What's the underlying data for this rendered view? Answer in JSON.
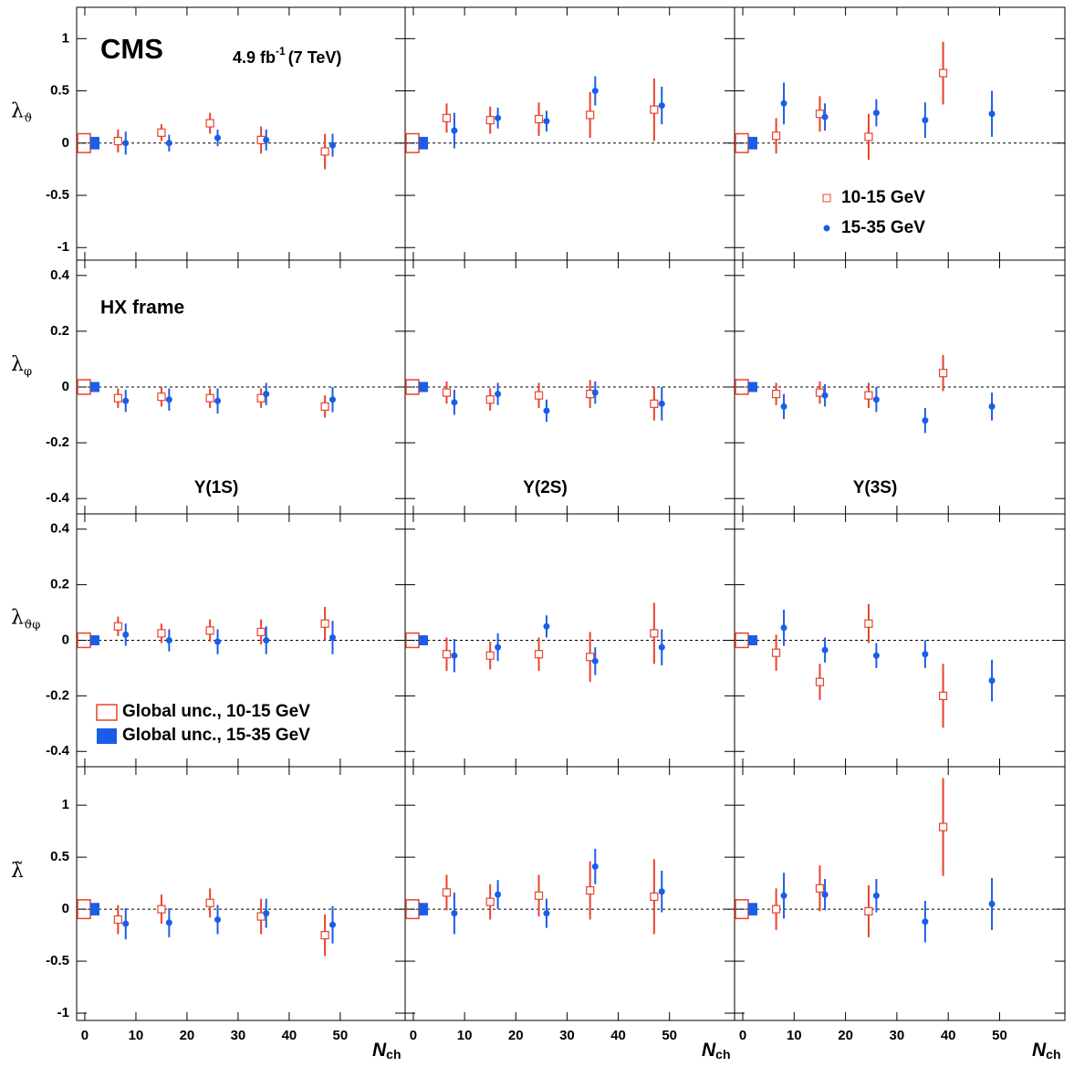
{
  "chart_data": [
    {
      "type": "scatter",
      "title": "CMS",
      "lumi": "4.9 fb",
      "lumi_exp": "-1",
      "energy": "(7 TeV)",
      "ylabel": "λ",
      "ylabel_sub": "ϑ",
      "xlim": [
        -1.6,
        62.7
      ],
      "xticks": [
        0,
        10,
        20,
        30,
        40,
        50
      ],
      "ylim": [
        -1.12,
        1.3
      ],
      "yticks": [
        -1,
        -0.5,
        0,
        0.5,
        1
      ],
      "hline": 0,
      "series": [
        {
          "color": "#e8432d",
          "marker": "open-square",
          "global_unc": 0.09,
          "x": [
            6.5,
            15,
            24.5,
            34.5,
            47
          ],
          "values": [
            0.02,
            0.1,
            0.19,
            0.03,
            -0.08
          ],
          "errors": [
            0.11,
            0.08,
            0.1,
            0.13,
            0.17
          ]
        },
        {
          "color": "#1a5ee8",
          "marker": "circle",
          "global_unc": 0.06,
          "x": [
            8,
            16.5,
            26,
            35.5,
            48.5
          ],
          "values": [
            0,
            0,
            0.05,
            0.03,
            -0.02
          ],
          "errors": [
            0.11,
            0.08,
            0.08,
            0.1,
            0.11
          ]
        }
      ]
    },
    {
      "type": "scatter",
      "xlim": [
        -1.6,
        62.7
      ],
      "xticks": [
        0,
        10,
        20,
        30,
        40,
        50
      ],
      "ylim": [
        -1.12,
        1.3
      ],
      "yticks": [
        -1,
        -0.5,
        0,
        0.5,
        1
      ],
      "hline": 0,
      "series": [
        {
          "color": "#e8432d",
          "marker": "open-square",
          "global_unc": 0.09,
          "x": [
            6.5,
            15,
            24.5,
            34.5,
            47
          ],
          "values": [
            0.24,
            0.22,
            0.23,
            0.27,
            0.32
          ],
          "errors": [
            0.14,
            0.13,
            0.16,
            0.22,
            0.3
          ]
        },
        {
          "color": "#1a5ee8",
          "marker": "circle",
          "global_unc": 0.06,
          "x": [
            8,
            16.5,
            26,
            35.5,
            48.5
          ],
          "values": [
            0.12,
            0.24,
            0.21,
            0.5,
            0.36
          ],
          "errors": [
            0.17,
            0.1,
            0.1,
            0.14,
            0.18
          ]
        }
      ]
    },
    {
      "type": "scatter",
      "legend": "lower right",
      "xlim": [
        -1.6,
        62.7
      ],
      "xticks": [
        0,
        10,
        20,
        30,
        40,
        50
      ],
      "ylim": [
        -1.12,
        1.3
      ],
      "yticks": [
        -1,
        -0.5,
        0,
        0.5,
        1
      ],
      "hline": 0,
      "series": [
        {
          "name": "10-15 GeV",
          "color": "#e8432d",
          "marker": "open-square",
          "global_unc": 0.09,
          "x": [
            6.5,
            15,
            24.5,
            39
          ],
          "values": [
            0.07,
            0.28,
            0.06,
            0.67
          ],
          "errors": [
            0.17,
            0.17,
            0.22,
            0.3
          ]
        },
        {
          "name": "15-35 GeV",
          "color": "#1a5ee8",
          "marker": "circle",
          "global_unc": 0.06,
          "x": [
            8,
            16,
            26,
            35.5,
            48.5
          ],
          "values": [
            0.38,
            0.25,
            0.29,
            0.22,
            0.28
          ],
          "errors": [
            0.2,
            0.13,
            0.13,
            0.17,
            0.22
          ]
        }
      ]
    },
    {
      "type": "scatter",
      "frame_label": "HX frame",
      "state": "Υ(1S)",
      "ylabel": "λ",
      "ylabel_sub": "φ",
      "xlim": [
        -1.6,
        62.7
      ],
      "xticks": [
        0,
        10,
        20,
        30,
        40,
        50
      ],
      "ylim": [
        -0.455,
        0.455
      ],
      "yticks": [
        -0.4,
        -0.2,
        0,
        0.2,
        0.4
      ],
      "hline": 0,
      "series": [
        {
          "color": "#e8432d",
          "marker": "open-square",
          "global_unc": 0.026,
          "x": [
            6.5,
            15,
            24.5,
            34.5,
            47
          ],
          "values": [
            -0.04,
            -0.035,
            -0.04,
            -0.04,
            -0.07
          ],
          "errors": [
            0.035,
            0.035,
            0.035,
            0.035,
            0.04
          ]
        },
        {
          "color": "#1a5ee8",
          "marker": "circle",
          "global_unc": 0.018,
          "x": [
            8,
            16.5,
            26,
            35.5,
            48.5
          ],
          "values": [
            -0.05,
            -0.045,
            -0.05,
            -0.025,
            -0.045
          ],
          "errors": [
            0.04,
            0.04,
            0.045,
            0.04,
            0.045
          ]
        }
      ]
    },
    {
      "type": "scatter",
      "state": "Υ(2S)",
      "xlim": [
        -1.6,
        62.7
      ],
      "xticks": [
        0,
        10,
        20,
        30,
        40,
        50
      ],
      "ylim": [
        -0.455,
        0.455
      ],
      "yticks": [
        -0.4,
        -0.2,
        0,
        0.2,
        0.4
      ],
      "hline": 0,
      "series": [
        {
          "color": "#e8432d",
          "marker": "open-square",
          "global_unc": 0.026,
          "x": [
            6.5,
            15,
            24.5,
            34.5,
            47
          ],
          "values": [
            -0.02,
            -0.045,
            -0.03,
            -0.025,
            -0.06
          ],
          "errors": [
            0.04,
            0.04,
            0.045,
            0.05,
            0.06
          ]
        },
        {
          "color": "#1a5ee8",
          "marker": "circle",
          "global_unc": 0.018,
          "x": [
            8,
            16.5,
            26,
            35.5,
            48.5
          ],
          "values": [
            -0.055,
            -0.025,
            -0.085,
            -0.02,
            -0.06
          ],
          "errors": [
            0.045,
            0.04,
            0.04,
            0.04,
            0.06
          ]
        }
      ]
    },
    {
      "type": "scatter",
      "state": "Υ(3S)",
      "xlim": [
        -1.6,
        62.7
      ],
      "xticks": [
        0,
        10,
        20,
        30,
        40,
        50
      ],
      "ylim": [
        -0.455,
        0.455
      ],
      "yticks": [
        -0.4,
        -0.2,
        0,
        0.2,
        0.4
      ],
      "hline": 0,
      "series": [
        {
          "color": "#e8432d",
          "marker": "open-square",
          "global_unc": 0.026,
          "x": [
            6.5,
            15,
            24.5,
            39
          ],
          "values": [
            -0.025,
            -0.02,
            -0.03,
            0.05
          ],
          "errors": [
            0.04,
            0.04,
            0.045,
            0.065
          ]
        },
        {
          "color": "#1a5ee8",
          "marker": "circle",
          "global_unc": 0.018,
          "x": [
            8,
            16,
            26,
            35.5,
            48.5
          ],
          "values": [
            -0.07,
            -0.03,
            -0.045,
            -0.12,
            -0.07
          ],
          "errors": [
            0.045,
            0.04,
            0.045,
            0.045,
            0.05
          ]
        }
      ]
    },
    {
      "type": "scatter",
      "ylabel": "λ",
      "ylabel_sub": "ϑφ",
      "global_legend": [
        "Global unc., 10-15 GeV",
        "Global unc., 15-35 GeV"
      ],
      "xlim": [
        -1.6,
        62.7
      ],
      "xticks": [
        0,
        10,
        20,
        30,
        40,
        50
      ],
      "ylim": [
        -0.455,
        0.455
      ],
      "yticks": [
        -0.4,
        -0.2,
        0,
        0.2,
        0.4
      ],
      "hline": 0,
      "series": [
        {
          "color": "#e8432d",
          "marker": "open-square",
          "global_unc": 0.026,
          "x": [
            6.5,
            15,
            24.5,
            34.5,
            47
          ],
          "values": [
            0.05,
            0.025,
            0.035,
            0.03,
            0.06
          ],
          "errors": [
            0.035,
            0.035,
            0.04,
            0.045,
            0.06
          ]
        },
        {
          "color": "#1a5ee8",
          "marker": "circle",
          "global_unc": 0.018,
          "x": [
            8,
            16.5,
            26,
            35.5,
            48.5
          ],
          "values": [
            0.02,
            0,
            -0.005,
            0,
            0.01
          ],
          "errors": [
            0.04,
            0.04,
            0.045,
            0.05,
            0.06
          ]
        }
      ]
    },
    {
      "type": "scatter",
      "xlim": [
        -1.6,
        62.7
      ],
      "xticks": [
        0,
        10,
        20,
        30,
        40,
        50
      ],
      "ylim": [
        -0.455,
        0.455
      ],
      "yticks": [
        -0.4,
        -0.2,
        0,
        0.2,
        0.4
      ],
      "hline": 0,
      "series": [
        {
          "color": "#e8432d",
          "marker": "open-square",
          "global_unc": 0.026,
          "x": [
            6.5,
            15,
            24.5,
            34.5,
            47
          ],
          "values": [
            -0.05,
            -0.055,
            -0.05,
            -0.06,
            0.025
          ],
          "errors": [
            0.06,
            0.05,
            0.06,
            0.09,
            0.11
          ]
        },
        {
          "color": "#1a5ee8",
          "marker": "circle",
          "global_unc": 0.018,
          "x": [
            8,
            16.5,
            26,
            35.5,
            48.5
          ],
          "values": [
            -0.055,
            -0.025,
            0.05,
            -0.075,
            -0.025
          ],
          "errors": [
            0.06,
            0.05,
            0.04,
            0.05,
            0.065
          ]
        }
      ]
    },
    {
      "type": "scatter",
      "xlim": [
        -1.6,
        62.7
      ],
      "xticks": [
        0,
        10,
        20,
        30,
        40,
        50
      ],
      "ylim": [
        -0.455,
        0.455
      ],
      "yticks": [
        -0.4,
        -0.2,
        0,
        0.2,
        0.4
      ],
      "hline": 0,
      "series": [
        {
          "color": "#e8432d",
          "marker": "open-square",
          "global_unc": 0.026,
          "x": [
            6.5,
            15,
            24.5,
            39
          ],
          "values": [
            -0.045,
            -0.15,
            0.06,
            -0.2
          ],
          "errors": [
            0.065,
            0.065,
            0.07,
            0.115
          ]
        },
        {
          "color": "#1a5ee8",
          "marker": "circle",
          "global_unc": 0.018,
          "x": [
            8,
            16,
            26,
            35.5,
            48.5
          ],
          "values": [
            0.045,
            -0.035,
            -0.055,
            -0.05,
            -0.145
          ],
          "errors": [
            0.065,
            0.045,
            0.045,
            0.05,
            0.075
          ]
        }
      ]
    },
    {
      "type": "scatter",
      "ylabel": "λ̃",
      "xlabel": "N",
      "xlabel_sub": "ch",
      "xlim": [
        -1.6,
        62.7
      ],
      "xticks": [
        0,
        10,
        20,
        30,
        40,
        50
      ],
      "ylim": [
        -1.07,
        1.37
      ],
      "yticks": [
        -1,
        -0.5,
        0,
        0.5,
        1
      ],
      "hline": 0,
      "series": [
        {
          "color": "#e8432d",
          "marker": "open-square",
          "global_unc": 0.09,
          "x": [
            6.5,
            15,
            24.5,
            34.5,
            47
          ],
          "values": [
            -0.1,
            0,
            0.06,
            -0.07,
            -0.25
          ],
          "errors": [
            0.14,
            0.14,
            0.14,
            0.17,
            0.2
          ]
        },
        {
          "color": "#1a5ee8",
          "marker": "circle",
          "global_unc": 0.06,
          "x": [
            8,
            16.5,
            26,
            35.5,
            48.5
          ],
          "values": [
            -0.14,
            -0.13,
            -0.1,
            -0.04,
            -0.15
          ],
          "errors": [
            0.15,
            0.14,
            0.14,
            0.14,
            0.18
          ]
        }
      ]
    },
    {
      "type": "scatter",
      "xlabel": "N",
      "xlabel_sub": "ch",
      "xlim": [
        -1.6,
        62.7
      ],
      "xticks": [
        0,
        10,
        20,
        30,
        40,
        50
      ],
      "ylim": [
        -1.07,
        1.37
      ],
      "yticks": [
        -1,
        -0.5,
        0,
        0.5,
        1
      ],
      "hline": 0,
      "series": [
        {
          "color": "#e8432d",
          "marker": "open-square",
          "global_unc": 0.09,
          "x": [
            6.5,
            15,
            24.5,
            34.5,
            47
          ],
          "values": [
            0.16,
            0.07,
            0.13,
            0.18,
            0.12
          ],
          "errors": [
            0.17,
            0.17,
            0.2,
            0.28,
            0.36
          ]
        },
        {
          "color": "#1a5ee8",
          "marker": "circle",
          "global_unc": 0.06,
          "x": [
            8,
            16.5,
            26,
            35.5,
            48.5
          ],
          "values": [
            -0.04,
            0.14,
            -0.04,
            0.41,
            0.17
          ],
          "errors": [
            0.2,
            0.14,
            0.14,
            0.17,
            0.2
          ]
        }
      ]
    },
    {
      "type": "scatter",
      "xlabel": "N",
      "xlabel_sub": "ch",
      "xlim": [
        -1.6,
        62.7
      ],
      "xticks": [
        0,
        10,
        20,
        30,
        40,
        50
      ],
      "ylim": [
        -1.07,
        1.37
      ],
      "yticks": [
        -1,
        -0.5,
        0,
        0.5,
        1
      ],
      "hline": 0,
      "series": [
        {
          "color": "#e8432d",
          "marker": "open-square",
          "global_unc": 0.09,
          "x": [
            6.5,
            15,
            24.5,
            39
          ],
          "values": [
            0,
            0.2,
            -0.02,
            0.79
          ],
          "errors": [
            0.2,
            0.22,
            0.25,
            0.47
          ]
        },
        {
          "color": "#1a5ee8",
          "marker": "circle",
          "global_unc": 0.06,
          "x": [
            8,
            16,
            26,
            35.5,
            48.5
          ],
          "values": [
            0.13,
            0.14,
            0.13,
            -0.12,
            0.05
          ],
          "errors": [
            0.22,
            0.15,
            0.16,
            0.2,
            0.25
          ]
        }
      ]
    }
  ]
}
